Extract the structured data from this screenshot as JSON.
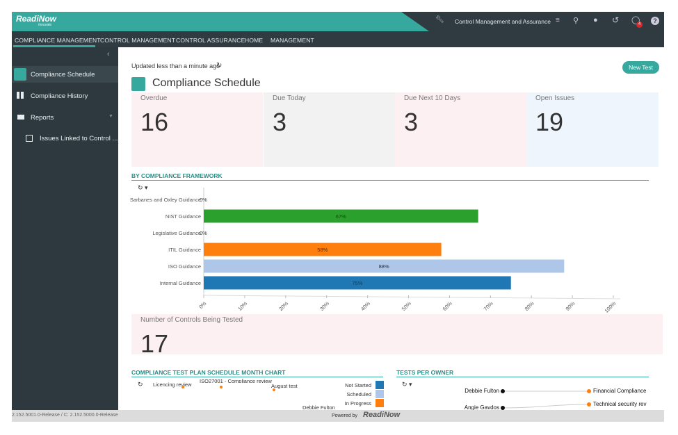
{
  "header": {
    "logo": "ReadiNow",
    "logo_sub": "Innovate",
    "app_name": "Control Management and Assurance",
    "notification_count": 4
  },
  "nav": [
    "COMPLIANCE MANAGEMENT",
    "CONTROL MANAGEMENT",
    "CONTROL ASSURANCE",
    "HOME",
    "MANAGEMENT"
  ],
  "sidebar": [
    "Compliance Schedule",
    "Compliance History",
    "Reports",
    "Issues Linked to Control ..."
  ],
  "page": {
    "updated": "Updated less than a minute ago",
    "title": "Compliance Schedule",
    "button": "New Test"
  },
  "cards": [
    {
      "label": "Overdue",
      "value": 16
    },
    {
      "label": "Due Today",
      "value": 3
    },
    {
      "label": "Due Next 10 Days",
      "value": 3
    },
    {
      "label": "Open Issues",
      "value": 19
    }
  ],
  "chart_data": {
    "type": "bar",
    "orientation": "horizontal",
    "title": "BY COMPLIANCE FRAMEWORK",
    "categories": [
      "Sarbanes and Oxley Guidance",
      "NIST Guidance",
      "Legislative Guidance",
      "ITIL Guidance",
      "ISO Guidance",
      "Internal Guidance"
    ],
    "values": [
      0,
      67,
      0,
      58,
      88,
      75
    ],
    "value_labels": [
      "0%",
      "67%",
      "0%",
      "58%",
      "88%",
      "75%"
    ],
    "colors": [
      "#1f77b4",
      "#2ca02c",
      "#1f77b4",
      "#ff7f0e",
      "#aec7e8",
      "#1f77b4"
    ],
    "xlim": [
      0,
      100
    ],
    "xticks": [
      {
        "value": 0,
        "label": "0%"
      },
      {
        "value": 10,
        "label": "10%"
      },
      {
        "value": 20,
        "label": "20%"
      },
      {
        "value": 30,
        "label": "30%"
      },
      {
        "value": 40,
        "label": "40%"
      },
      {
        "value": 50,
        "label": "50%"
      },
      {
        "value": 60,
        "label": "60%"
      },
      {
        "value": 70,
        "label": "70%"
      },
      {
        "value": 80,
        "label": "80%"
      },
      {
        "value": 90,
        "label": "90%"
      },
      {
        "value": 100,
        "label": "100%"
      }
    ]
  },
  "controls_card": {
    "label": "Number of Controls Being Tested",
    "value": 17
  },
  "schedule_chart": {
    "title": "COMPLIANCE TEST PLAN SCHEDULE MONTH CHART",
    "items": [
      "Licencing review",
      "ISO27001 - Compliance review",
      "August test"
    ],
    "owner": "Debbie Fulton",
    "legend": [
      {
        "name": "Not Started",
        "color": "#1f77b4"
      },
      {
        "name": "Scheduled",
        "color": "#aec7e8"
      },
      {
        "name": "In Progress",
        "color": "#ff7f0e"
      }
    ]
  },
  "owner_chart": {
    "title": "TESTS PER OWNER",
    "owners": [
      "Debbie Fulton",
      "Angie Gavdos"
    ],
    "tests": [
      "Financial Compliance",
      "Technical security rev"
    ]
  },
  "footer": {
    "version": "2.152.5001.0-Release / C: 2.152.5000.0-Release",
    "powered_by": "Powered by",
    "brand": "ReadiNow"
  }
}
